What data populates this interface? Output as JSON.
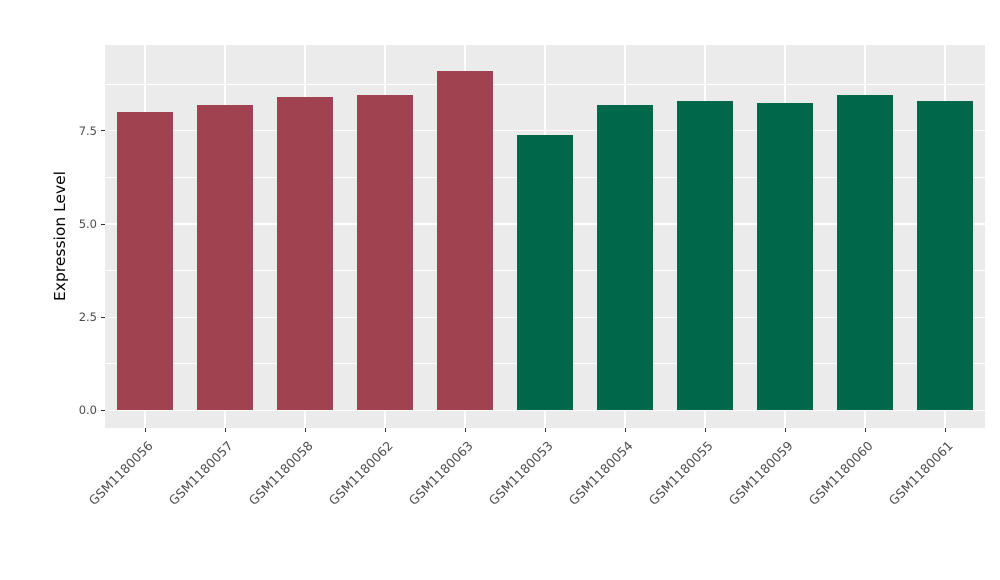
{
  "figure": {
    "background": "#FFFFFF",
    "panel_background": "#EBEBEB",
    "grid_color": "#FFFFFF",
    "tick_mark_color": "#333333",
    "tick_label_color": "#4D4D4D",
    "axis_title_color": "#000000"
  },
  "chart_data": {
    "type": "bar",
    "title": "",
    "xlabel": "",
    "ylabel": "Expression Level",
    "categories": [
      "GSM1180056",
      "GSM1180057",
      "GSM1180058",
      "GSM1180062",
      "GSM1180063",
      "GSM1180053",
      "GSM1180054",
      "GSM1180055",
      "GSM1180059",
      "GSM1180060",
      "GSM1180061"
    ],
    "values": [
      8.0,
      8.2,
      8.4,
      8.45,
      9.1,
      7.4,
      8.2,
      8.3,
      8.25,
      8.45,
      8.3
    ],
    "bar_colors": [
      "#A04250",
      "#A04250",
      "#A04250",
      "#A04250",
      "#A04250",
      "#00684A",
      "#00684A",
      "#00684A",
      "#00684A",
      "#00684A",
      "#00684A"
    ],
    "group_colors": {
      "group1": "#A04250",
      "group2": "#00684A"
    },
    "y_ticks": [
      0,
      2.5,
      5,
      7.5
    ],
    "y_tick_labels": [
      "0.0",
      "2.5",
      "5.0",
      "7.5"
    ],
    "ylim": [
      -0.47,
      9.8
    ],
    "grid": true,
    "legend": "none",
    "x_label_rotation": 45
  }
}
